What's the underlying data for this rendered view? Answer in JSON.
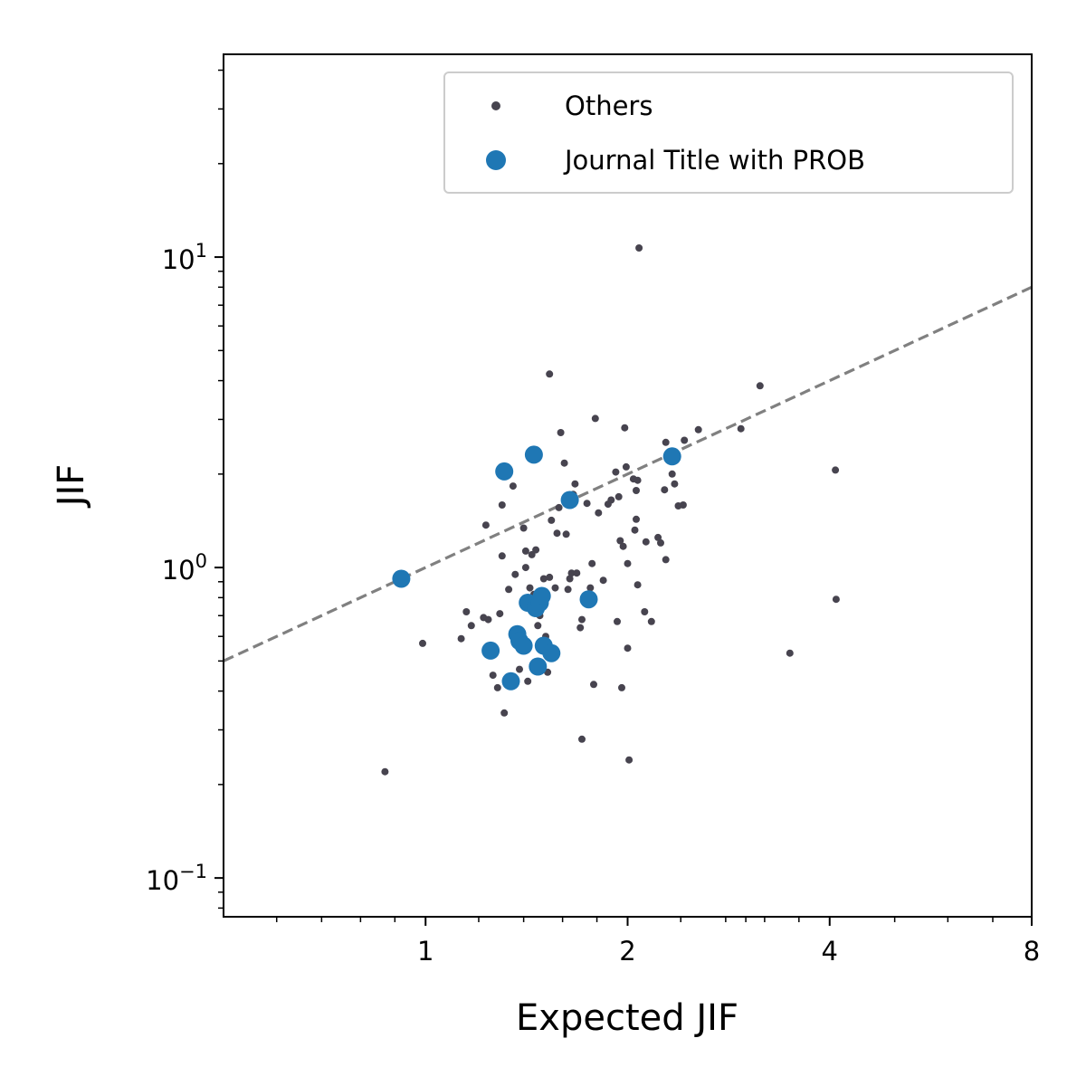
{
  "chart_data": {
    "type": "scatter",
    "xlabel": "Expected JIF",
    "ylabel": "JIF",
    "x_scale": "log2",
    "y_scale": "log10",
    "xlim": [
      0.5,
      8
    ],
    "ylim": [
      0.075,
      45
    ],
    "x_ticks": [
      {
        "value": 1,
        "label": "1"
      },
      {
        "value": 2,
        "label": "2"
      },
      {
        "value": 4,
        "label": "4"
      },
      {
        "value": 8,
        "label": "8"
      }
    ],
    "y_ticks": [
      {
        "value": 0.1,
        "base": "10",
        "exp": "−1"
      },
      {
        "value": 1,
        "base": "10",
        "exp": "0"
      },
      {
        "value": 10,
        "base": "10",
        "exp": "1"
      }
    ],
    "reference_line": {
      "style": "dashed",
      "color": "#808080",
      "slope": 1,
      "intercept": 0
    },
    "legend": {
      "position": "top-right"
    },
    "series": [
      {
        "name": "Others",
        "color": "#47444f",
        "points": [
          [
            0.87,
            0.22
          ],
          [
            0.99,
            0.57
          ],
          [
            1.13,
            0.59
          ],
          [
            1.15,
            0.72
          ],
          [
            1.17,
            0.65
          ],
          [
            1.22,
            0.69
          ],
          [
            1.23,
            1.37
          ],
          [
            1.24,
            0.68
          ],
          [
            1.25,
            0.53
          ],
          [
            1.26,
            0.45
          ],
          [
            1.28,
            0.41
          ],
          [
            1.29,
            0.71
          ],
          [
            1.3,
            1.09
          ],
          [
            1.3,
            1.59
          ],
          [
            1.31,
            0.34
          ],
          [
            1.33,
            0.85
          ],
          [
            1.35,
            1.83
          ],
          [
            1.36,
            0.95
          ],
          [
            1.38,
            0.47
          ],
          [
            1.4,
            1.34
          ],
          [
            1.41,
            1.0
          ],
          [
            1.41,
            1.13
          ],
          [
            1.42,
            0.43
          ],
          [
            1.43,
            0.86
          ],
          [
            1.44,
            1.1
          ],
          [
            1.45,
            0.82
          ],
          [
            1.46,
            1.14
          ],
          [
            1.47,
            0.65
          ],
          [
            1.48,
            0.7
          ],
          [
            1.5,
            0.92
          ],
          [
            1.51,
            0.6
          ],
          [
            1.52,
            0.46
          ],
          [
            1.53,
            0.93
          ],
          [
            1.53,
            4.2
          ],
          [
            1.54,
            1.42
          ],
          [
            1.56,
            0.86
          ],
          [
            1.57,
            1.29
          ],
          [
            1.58,
            1.56
          ],
          [
            1.59,
            2.72
          ],
          [
            1.61,
            2.17
          ],
          [
            1.62,
            1.28
          ],
          [
            1.63,
            0.85
          ],
          [
            1.64,
            0.92
          ],
          [
            1.65,
            0.96
          ],
          [
            1.66,
            1.72
          ],
          [
            1.67,
            1.86
          ],
          [
            1.68,
            0.96
          ],
          [
            1.7,
            0.64
          ],
          [
            1.71,
            0.68
          ],
          [
            1.71,
            0.28
          ],
          [
            1.74,
            1.61
          ],
          [
            1.76,
            0.86
          ],
          [
            1.77,
            1.03
          ],
          [
            1.78,
            0.42
          ],
          [
            1.79,
            3.02
          ],
          [
            1.81,
            1.5
          ],
          [
            1.84,
            0.91
          ],
          [
            1.87,
            1.6
          ],
          [
            1.89,
            1.65
          ],
          [
            1.92,
            2.03
          ],
          [
            1.93,
            0.67
          ],
          [
            1.94,
            1.69
          ],
          [
            1.95,
            1.22
          ],
          [
            1.96,
            0.41
          ],
          [
            1.97,
            1.17
          ],
          [
            1.98,
            2.82
          ],
          [
            1.99,
            2.11
          ],
          [
            2.0,
            0.55
          ],
          [
            2.0,
            1.03
          ],
          [
            2.01,
            0.24
          ],
          [
            2.04,
            1.93
          ],
          [
            2.05,
            1.32
          ],
          [
            2.06,
            1.43
          ],
          [
            2.06,
            1.77
          ],
          [
            2.07,
            1.91
          ],
          [
            2.07,
            0.88
          ],
          [
            2.08,
            10.7
          ],
          [
            2.12,
            0.72
          ],
          [
            2.13,
            1.21
          ],
          [
            2.17,
            0.67
          ],
          [
            2.22,
            1.25
          ],
          [
            2.24,
            1.2
          ],
          [
            2.27,
            1.78
          ],
          [
            2.28,
            1.06
          ],
          [
            2.28,
            2.53
          ],
          [
            2.33,
            2.0
          ],
          [
            2.35,
            1.86
          ],
          [
            2.38,
            1.58
          ],
          [
            2.42,
            1.59
          ],
          [
            2.43,
            2.57
          ],
          [
            2.55,
            2.78
          ],
          [
            2.95,
            2.8
          ],
          [
            3.15,
            3.85
          ],
          [
            3.49,
            0.53
          ],
          [
            4.08,
            2.06
          ],
          [
            4.09,
            0.79
          ]
        ]
      },
      {
        "name": "Journal Title with PROB",
        "color": "#1f77b4",
        "points": [
          [
            0.92,
            0.92
          ],
          [
            1.25,
            0.54
          ],
          [
            1.31,
            2.04
          ],
          [
            1.34,
            0.43
          ],
          [
            1.37,
            0.61
          ],
          [
            1.38,
            0.58
          ],
          [
            1.4,
            0.56
          ],
          [
            1.42,
            0.77
          ],
          [
            1.45,
            2.31
          ],
          [
            1.46,
            0.74
          ],
          [
            1.47,
            0.48
          ],
          [
            1.48,
            0.77
          ],
          [
            1.49,
            0.81
          ],
          [
            1.5,
            0.56
          ],
          [
            1.54,
            0.53
          ],
          [
            1.64,
            1.65
          ],
          [
            1.75,
            0.79
          ],
          [
            2.33,
            2.28
          ]
        ]
      }
    ]
  }
}
